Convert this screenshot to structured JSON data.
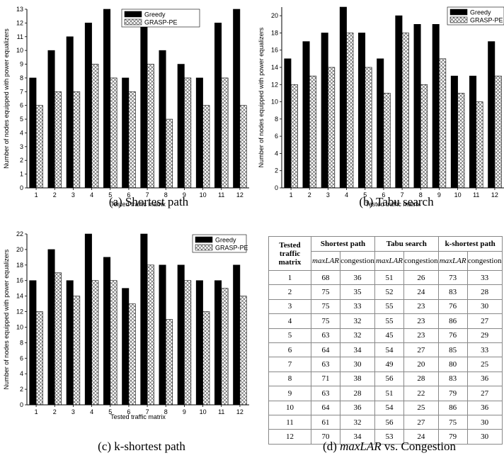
{
  "charts_common": {
    "xlabel": "Tested traffic matrix",
    "ylabel": "Number of nodes equipped with power equalizers",
    "legend": [
      "Greedy",
      "GRASP-PE"
    ],
    "colors": {
      "greedy": "#000000",
      "grasp": "#ffffff",
      "hatch": "#555555"
    }
  },
  "captions": {
    "a": "(a) Shortest path",
    "b": "(b) Tabu search",
    "c": "(c) k-shortest path",
    "d_italic": "maxLAR",
    "d_rest": " vs. Congestion",
    "d_prefix": "(d) "
  },
  "chart_data": [
    {
      "type": "bar",
      "categories": [
        "1",
        "2",
        "3",
        "4",
        "5",
        "6",
        "7",
        "8",
        "9",
        "10",
        "11",
        "12"
      ],
      "series": [
        {
          "name": "Greedy",
          "values": [
            8,
            10,
            11,
            12,
            13,
            8,
            12,
            10,
            9,
            8,
            12,
            13
          ]
        },
        {
          "name": "GRASP-PE",
          "values": [
            6,
            7,
            7,
            9,
            8,
            7,
            9,
            5,
            8,
            6,
            8,
            6
          ]
        }
      ],
      "xlabel": "Tested traffic matrix",
      "ylabel": "Number of nodes equipped with power equalizers",
      "ylim": [
        0,
        13
      ],
      "yticks": [
        "0",
        "1",
        "2",
        "3",
        "4",
        "5",
        "6",
        "7",
        "8",
        "9",
        "10",
        "11",
        "12",
        "13"
      ],
      "legend_position": "top-right"
    },
    {
      "type": "bar",
      "categories": [
        "1",
        "2",
        "3",
        "4",
        "5",
        "6",
        "7",
        "8",
        "9",
        "10",
        "11",
        "12"
      ],
      "series": [
        {
          "name": "Greedy",
          "values": [
            15,
            17,
            18,
            21,
            18,
            15,
            20,
            19,
            19,
            13,
            13,
            17
          ]
        },
        {
          "name": "GRASP-PE",
          "values": [
            12,
            13,
            14,
            18,
            14,
            11,
            18,
            12,
            15,
            11,
            10,
            13
          ]
        }
      ],
      "xlabel": "Tested traffic matrix",
      "ylabel": "Number of nodes equipped with power equalizers",
      "ylim": [
        0,
        21
      ],
      "yticks": [
        "0",
        "2",
        "4",
        "6",
        "8",
        "10",
        "12",
        "14",
        "16",
        "18",
        "20"
      ],
      "legend_position": "top-right"
    },
    {
      "type": "bar",
      "categories": [
        "1",
        "2",
        "3",
        "4",
        "5",
        "6",
        "7",
        "8",
        "9",
        "10",
        "11",
        "12"
      ],
      "series": [
        {
          "name": "Greedy",
          "values": [
            16,
            20,
            16,
            22,
            19,
            15,
            22,
            18,
            18,
            16,
            16,
            18
          ]
        },
        {
          "name": "GRASP-PE",
          "values": [
            12,
            17,
            14,
            16,
            16,
            13,
            18,
            11,
            16,
            12,
            15,
            14
          ]
        }
      ],
      "xlabel": "Tested traffic matrix",
      "ylabel": "Number of nodes equipped with power equalizers",
      "ylim": [
        0,
        22
      ],
      "yticks": [
        "0",
        "2",
        "4",
        "6",
        "8",
        "10",
        "12",
        "14",
        "16",
        "18",
        "20",
        "22"
      ],
      "legend_position": "top-right"
    },
    {
      "type": "table",
      "header_top": [
        "Tested traffic matrix",
        "Shortest path",
        "Tabu search",
        "k-shortest path"
      ],
      "header_sub": [
        "maxLAR",
        "congestion",
        "maxLAR",
        "congestion",
        "maxLAR",
        "congestion"
      ],
      "rows": [
        [
          "1",
          "68",
          "36",
          "51",
          "26",
          "73",
          "33"
        ],
        [
          "2",
          "75",
          "35",
          "52",
          "24",
          "83",
          "28"
        ],
        [
          "3",
          "75",
          "33",
          "55",
          "23",
          "76",
          "30"
        ],
        [
          "4",
          "75",
          "32",
          "55",
          "23",
          "86",
          "27"
        ],
        [
          "5",
          "63",
          "32",
          "45",
          "23",
          "76",
          "29"
        ],
        [
          "6",
          "64",
          "34",
          "54",
          "27",
          "85",
          "33"
        ],
        [
          "7",
          "63",
          "30",
          "49",
          "20",
          "80",
          "25"
        ],
        [
          "8",
          "71",
          "38",
          "56",
          "28",
          "83",
          "36"
        ],
        [
          "9",
          "63",
          "28",
          "51",
          "22",
          "79",
          "27"
        ],
        [
          "10",
          "64",
          "36",
          "54",
          "25",
          "86",
          "36"
        ],
        [
          "11",
          "61",
          "32",
          "56",
          "27",
          "75",
          "30"
        ],
        [
          "12",
          "70",
          "34",
          "53",
          "24",
          "79",
          "30"
        ]
      ]
    }
  ]
}
